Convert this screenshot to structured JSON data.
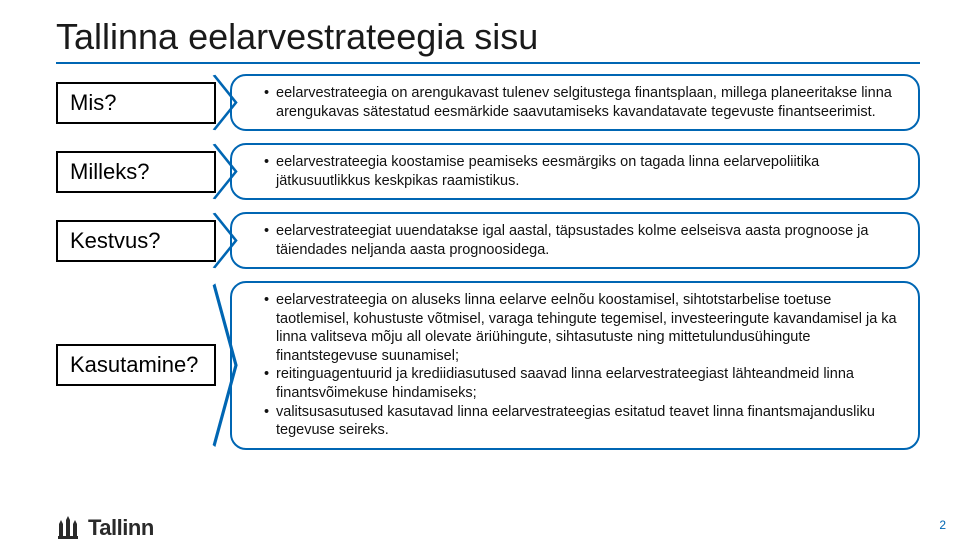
{
  "accent_color": "#0066b3",
  "title": "Tallinna eelarvestrateegia sisu",
  "rows": [
    {
      "label": "Mis?",
      "bullets": [
        "eelarvestrateegia on arengukavast tulenev selgitustega finantsplaan, millega planeeritakse linna arengukavas sätestatud eesmärkide saavutamiseks kavandatavate tegevuste finantseerimist."
      ]
    },
    {
      "label": "Milleks?",
      "bullets": [
        "eelarvestrateegia koostamise peamiseks eesmärgiks on tagada linna eelarvepoliitika jätkusuutlikkus keskpikas raamistikus."
      ]
    },
    {
      "label": "Kestvus?",
      "bullets": [
        "eelarvestrateegiat uuendatakse igal aastal, täpsustades kolme eelseisva aasta prognoose ja täiendades neljanda aasta prognoosidega."
      ]
    },
    {
      "label": "Kasutamine?",
      "bullets": [
        "eelarvestrateegia on aluseks linna eelarve eelnõu koostamisel, sihtotstarbelise toetuse taotlemisel, kohustuste võtmisel, varaga tehingute tegemisel, investeeringute kavandamisel ja ka linna valitseva mõju all olevate äriühingute, sihtasutuste ning mittetulundusühingute finantstegevuse suunamisel;",
        "reitinguagentuurid ja krediidiasutused saavad linna eelarvestrateegiast lähteandmeid linna finantsvõimekuse hindamiseks;",
        "valitsusasutused kasutavad linna eelarvestrateegias esitatud teavet linna finantsmajandusliku tegevuse seireks."
      ]
    }
  ],
  "logo_text": "Tallinn",
  "page_number": "2"
}
